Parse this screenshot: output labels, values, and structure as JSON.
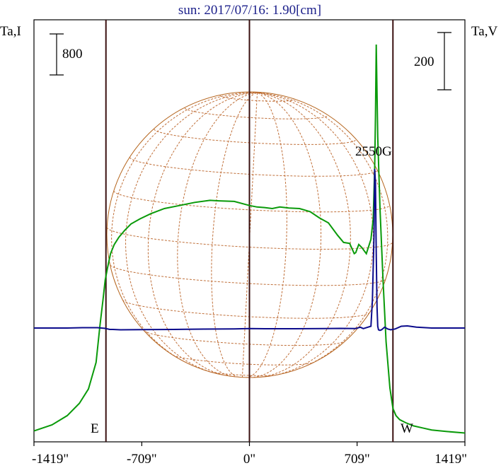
{
  "chart_data": {
    "type": "line",
    "title": "sun: 2017/07/16: 1.90[cm]",
    "ylabel_left": "Ta,I",
    "ylabel_right": "Ta,V",
    "scale_left_label": "800",
    "scale_right_label": "200",
    "xlim": [
      -1419,
      1419
    ],
    "x_ticks": [
      -1419,
      -709,
      0,
      709,
      1419
    ],
    "x_tick_labels": [
      "-1419\"",
      "-709\"",
      "0\"",
      "709\"",
      "1419\""
    ],
    "limb_markers": [
      -945,
      945
    ],
    "limb_labels": [
      "E",
      "W"
    ],
    "annotation": "2550G",
    "series": [
      {
        "key": "I",
        "color": "#0a9a0a",
        "x": [
          -1419,
          -1300,
          -1200,
          -1120,
          -1060,
          -1010,
          -985,
          -965,
          -950,
          -935,
          -915,
          -890,
          -860,
          -820,
          -780,
          -720,
          -650,
          -560,
          -460,
          -360,
          -260,
          -200,
          -100,
          0,
          50,
          100,
          150,
          200,
          260,
          330,
          400,
          460,
          520,
          580,
          620,
          660,
          690,
          700,
          720,
          740,
          770,
          800,
          815,
          825,
          830,
          835,
          845,
          860,
          880,
          900,
          925,
          945,
          965,
          990,
          1030,
          1080,
          1140,
          1200,
          1300,
          1419
        ],
        "y": [
          30,
          90,
          180,
          300,
          440,
          700,
          1050,
          1300,
          1500,
          1620,
          1760,
          1850,
          1920,
          1990,
          2050,
          2100,
          2150,
          2200,
          2230,
          2260,
          2280,
          2275,
          2270,
          2230,
          2215,
          2210,
          2200,
          2215,
          2205,
          2200,
          2170,
          2110,
          2060,
          1940,
          1870,
          1860,
          1760,
          1770,
          1850,
          1820,
          1760,
          1900,
          2100,
          2600,
          3100,
          3800,
          2900,
          2200,
          1500,
          900,
          450,
          250,
          180,
          140,
          110,
          80,
          60,
          40,
          25,
          10
        ]
      },
      {
        "key": "V",
        "color": "#0b0b8c",
        "x": [
          -1419,
          -1300,
          -1200,
          -1100,
          -1000,
          -950,
          -920,
          -900,
          -850,
          -700,
          -500,
          -300,
          -100,
          0,
          100,
          300,
          500,
          600,
          700,
          730,
          750,
          780,
          800,
          810,
          820,
          825,
          830,
          835,
          840,
          845,
          850,
          860,
          870,
          890,
          910,
          930,
          960,
          1000,
          1040,
          1100,
          1200,
          1300,
          1419
        ],
        "y": [
          0,
          0,
          0,
          2,
          2,
          -2,
          -8,
          -8,
          -10,
          -9,
          -8,
          -6,
          -5,
          -3,
          -4,
          -4,
          -3,
          -2,
          -3,
          5,
          -3,
          5,
          10,
          160,
          520,
          900,
          820,
          420,
          120,
          10,
          -10,
          -13,
          -10,
          5,
          -5,
          -10,
          -5,
          10,
          12,
          5,
          0,
          0,
          0
        ]
      }
    ]
  }
}
